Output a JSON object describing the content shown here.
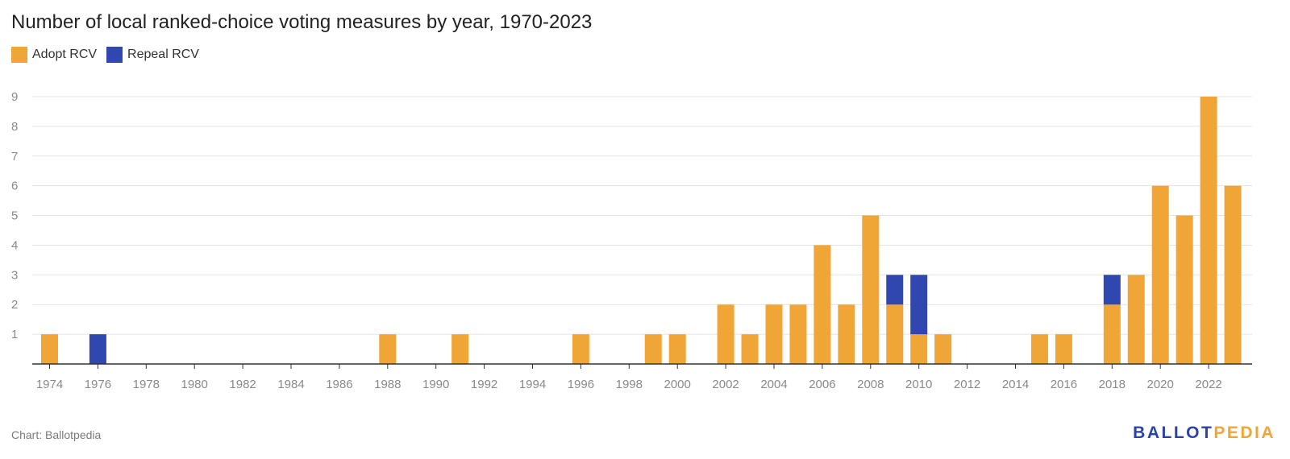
{
  "title": "Number of local ranked-choice voting measures by year, 1970-2023",
  "source": "Chart: Ballotpedia",
  "logo": {
    "part1": "BALLOT",
    "part2": "PEDIA"
  },
  "colors": {
    "adopt": "#f0a537",
    "repeal": "#2f47ae",
    "grid": "#e3e3e3",
    "axis": "#333333"
  },
  "chart_data": {
    "type": "bar",
    "stacked": true,
    "title": "Number of local ranked-choice voting measures by year, 1970-2023",
    "xlabel": "",
    "ylabel": "",
    "ylim": [
      0,
      9
    ],
    "yticks": [
      1,
      2,
      3,
      4,
      5,
      6,
      7,
      8,
      9
    ],
    "grid": true,
    "legend_position": "top-left",
    "categories": [
      1974,
      1975,
      1976,
      1977,
      1978,
      1979,
      1980,
      1981,
      1982,
      1983,
      1984,
      1985,
      1986,
      1987,
      1988,
      1989,
      1990,
      1991,
      1992,
      1993,
      1994,
      1995,
      1996,
      1997,
      1998,
      1999,
      2000,
      2001,
      2002,
      2003,
      2004,
      2005,
      2006,
      2007,
      2008,
      2009,
      2010,
      2011,
      2012,
      2013,
      2014,
      2015,
      2016,
      2017,
      2018,
      2019,
      2020,
      2021,
      2022,
      2023
    ],
    "xtick_labels": [
      "1974",
      "1976",
      "1978",
      "1980",
      "1982",
      "1984",
      "1986",
      "1988",
      "1990",
      "1992",
      "1994",
      "1996",
      "1998",
      "2000",
      "2002",
      "2004",
      "2006",
      "2008",
      "2010",
      "2012",
      "2014",
      "2016",
      "2018",
      "2020",
      "2022"
    ],
    "series": [
      {
        "name": "Adopt RCV",
        "color": "#f0a537",
        "values": [
          1,
          0,
          0,
          0,
          0,
          0,
          0,
          0,
          0,
          0,
          0,
          0,
          0,
          0,
          1,
          0,
          0,
          1,
          0,
          0,
          0,
          0,
          1,
          0,
          0,
          1,
          1,
          0,
          2,
          1,
          2,
          2,
          4,
          2,
          5,
          2,
          1,
          1,
          0,
          0,
          0,
          1,
          1,
          0,
          2,
          3,
          6,
          5,
          9,
          6
        ]
      },
      {
        "name": "Repeal RCV",
        "color": "#2f47ae",
        "values": [
          0,
          0,
          1,
          0,
          0,
          0,
          0,
          0,
          0,
          0,
          0,
          0,
          0,
          0,
          0,
          0,
          0,
          0,
          0,
          0,
          0,
          0,
          0,
          0,
          0,
          0,
          0,
          0,
          0,
          0,
          0,
          0,
          0,
          0,
          0,
          1,
          2,
          0,
          0,
          0,
          0,
          0,
          0,
          0,
          1,
          0,
          0,
          0,
          0,
          0
        ]
      }
    ]
  }
}
